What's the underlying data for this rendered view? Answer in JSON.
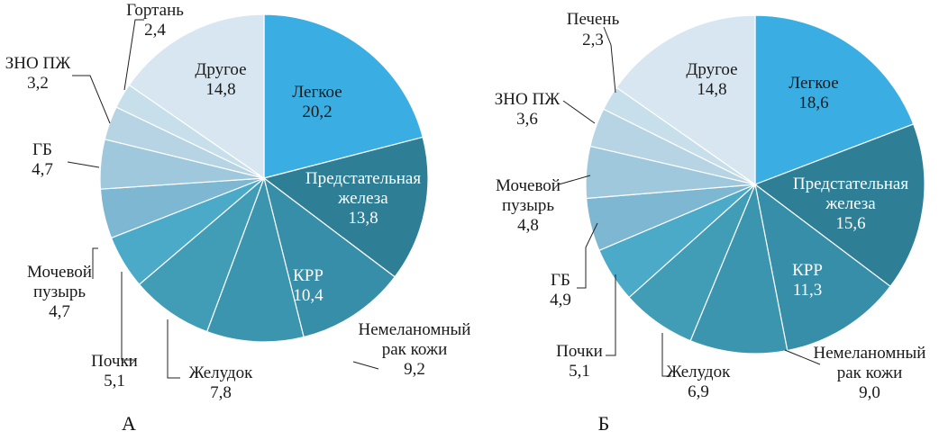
{
  "chart_data": [
    {
      "type": "pie",
      "panel_label": "А",
      "slices": [
        {
          "label": "Легкое",
          "value": 20.2,
          "display": "20,2",
          "color": "#3aaee3",
          "text_color": "#1a1a1a"
        },
        {
          "label": "Предстательная железа",
          "display_lines": [
            "Предстательная",
            "железа"
          ],
          "value": 13.8,
          "display": "13,8",
          "color": "#2e7f96",
          "text_color": "#ffffff"
        },
        {
          "label": "КРР",
          "value": 10.4,
          "display": "10,4",
          "color": "#368ea8",
          "text_color": "#ffffff"
        },
        {
          "label": "Немеланомный рак кожи",
          "display_lines": [
            "Немеланомный",
            "рак кожи"
          ],
          "value": 9.2,
          "display": "9,2",
          "color": "#3b95ae",
          "text_color": "#1a1a1a"
        },
        {
          "label": "Желудок",
          "value": 7.8,
          "display": "7,8",
          "color": "#419cb6",
          "text_color": "#1a1a1a"
        },
        {
          "label": "Почки",
          "value": 5.1,
          "display": "5,1",
          "color": "#4aaac8",
          "text_color": "#1a1a1a"
        },
        {
          "label": "Мочевой пузырь",
          "display_lines": [
            "Мочевой",
            "пузырь"
          ],
          "value": 4.7,
          "display": "4,7",
          "color": "#7db7d1",
          "text_color": "#1a1a1a"
        },
        {
          "label": "ГБ",
          "value": 4.7,
          "display": "4,7",
          "color": "#9fc8dc",
          "text_color": "#1a1a1a"
        },
        {
          "label": "ЗНО ПЖ",
          "value": 3.2,
          "display": "3,2",
          "color": "#b6d4e4",
          "text_color": "#1a1a1a"
        },
        {
          "label": "Гортань",
          "value": 2.4,
          "display": "2,4",
          "color": "#c6dfeb",
          "text_color": "#1a1a1a"
        },
        {
          "label": "Другое",
          "value": 14.8,
          "display": "14,8",
          "color": "#d7e6f0",
          "text_color": "#1a1a1a"
        }
      ]
    },
    {
      "type": "pie",
      "panel_label": "Б",
      "slices": [
        {
          "label": "Легкое",
          "value": 18.6,
          "display": "18,6",
          "color": "#3aaee3",
          "text_color": "#1a1a1a"
        },
        {
          "label": "Предстательная железа",
          "display_lines": [
            "Предстательная",
            "железа"
          ],
          "value": 15.6,
          "display": "15,6",
          "color": "#2e7f96",
          "text_color": "#ffffff"
        },
        {
          "label": "КРР",
          "value": 11.3,
          "display": "11,3",
          "color": "#368ea8",
          "text_color": "#ffffff"
        },
        {
          "label": "Немеланомный рак кожи",
          "display_lines": [
            "Немеланомный",
            "рак кожи"
          ],
          "value": 9.0,
          "display": "9,0",
          "color": "#3b95ae",
          "text_color": "#1a1a1a"
        },
        {
          "label": "Желудок",
          "value": 6.9,
          "display": "6,9",
          "color": "#419cb6",
          "text_color": "#1a1a1a"
        },
        {
          "label": "Почки",
          "value": 5.1,
          "display": "5,1",
          "color": "#4aaac8",
          "text_color": "#1a1a1a"
        },
        {
          "label": "ГБ",
          "value": 4.9,
          "display": "4,9",
          "color": "#7db7d1",
          "text_color": "#1a1a1a"
        },
        {
          "label": "Мочевой пузырь",
          "display_lines": [
            "Мочевой",
            "пузырь"
          ],
          "value": 4.8,
          "display": "4,8",
          "color": "#9fc8dc",
          "text_color": "#1a1a1a"
        },
        {
          "label": "ЗНО ПЖ",
          "value": 3.6,
          "display": "3,6",
          "color": "#b6d4e4",
          "text_color": "#1a1a1a"
        },
        {
          "label": "Печень",
          "value": 2.3,
          "display": "2,3",
          "color": "#c6dfeb",
          "text_color": "#1a1a1a"
        },
        {
          "label": "Другое",
          "value": 14.8,
          "display": "14,8",
          "color": "#d7e6f0",
          "text_color": "#1a1a1a"
        }
      ]
    }
  ]
}
